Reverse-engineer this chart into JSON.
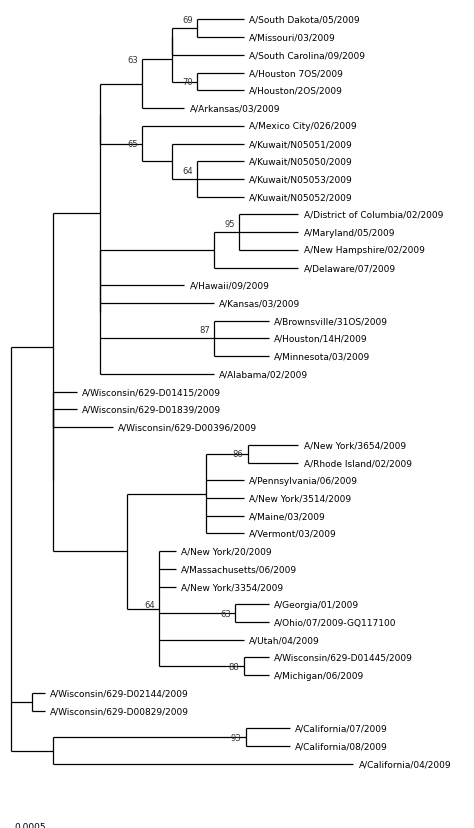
{
  "figsize": [
    4.74,
    8.29
  ],
  "dpi": 100,
  "font_size": 6.5,
  "bootstrap_font_size": 6,
  "lw": 0.9,
  "scalebar_label": "0.0005",
  "taxa": [
    {
      "label": "A/South Dakota/05/2009",
      "y": 0,
      "xtip": 0.55
    },
    {
      "label": "A/Missouri/03/2009",
      "y": 1,
      "xtip": 0.55
    },
    {
      "label": "A/South Carolina/09/2009",
      "y": 2,
      "xtip": 0.55
    },
    {
      "label": "A/Houston 7OS/2009",
      "y": 3,
      "xtip": 0.55
    },
    {
      "label": "A/Houston/2OS/2009",
      "y": 4,
      "xtip": 0.55
    },
    {
      "label": "A/Arkansas/03/2009",
      "y": 5,
      "xtip": 0.41
    },
    {
      "label": "A/Mexico City/026/2009",
      "y": 6,
      "xtip": 0.55
    },
    {
      "label": "A/Kuwait/N05051/2009",
      "y": 7,
      "xtip": 0.55
    },
    {
      "label": "A/Kuwait/N05050/2009",
      "y": 8,
      "xtip": 0.55
    },
    {
      "label": "A/Kuwait/N05053/2009",
      "y": 9,
      "xtip": 0.55
    },
    {
      "label": "A/Kuwait/N05052/2009",
      "y": 10,
      "xtip": 0.55
    },
    {
      "label": "A/District of Columbia/02/2009",
      "y": 11,
      "xtip": 0.68
    },
    {
      "label": "A/Maryland/05/2009",
      "y": 12,
      "xtip": 0.68
    },
    {
      "label": "A/New Hampshire/02/2009",
      "y": 13,
      "xtip": 0.68
    },
    {
      "label": "A/Delaware/07/2009",
      "y": 14,
      "xtip": 0.68
    },
    {
      "label": "A/Hawaii/09/2009",
      "y": 15,
      "xtip": 0.41
    },
    {
      "label": "A/Kansas/03/2009",
      "y": 16,
      "xtip": 0.48
    },
    {
      "label": "A/Brownsville/31OS/2009",
      "y": 17,
      "xtip": 0.61
    },
    {
      "label": "A/Houston/14H/2009",
      "y": 18,
      "xtip": 0.61
    },
    {
      "label": "A/Minnesota/03/2009",
      "y": 19,
      "xtip": 0.61
    },
    {
      "label": "A/Alabama/02/2009",
      "y": 20,
      "xtip": 0.48
    },
    {
      "label": "A/Wisconsin/629-D01415/2009",
      "y": 21,
      "xtip": 0.155
    },
    {
      "label": "A/Wisconsin/629-D01839/2009",
      "y": 22,
      "xtip": 0.155
    },
    {
      "label": "A/Wisconsin/629-D00396/2009",
      "y": 23,
      "xtip": 0.24
    },
    {
      "label": "A/New York/3654/2009",
      "y": 24,
      "xtip": 0.68
    },
    {
      "label": "A/Rhode Island/02/2009",
      "y": 25,
      "xtip": 0.68
    },
    {
      "label": "A/Pennsylvania/06/2009",
      "y": 26,
      "xtip": 0.55
    },
    {
      "label": "A/New York/3514/2009",
      "y": 27,
      "xtip": 0.55
    },
    {
      "label": "A/Maine/03/2009",
      "y": 28,
      "xtip": 0.55
    },
    {
      "label": "A/Vermont/03/2009",
      "y": 29,
      "xtip": 0.55
    },
    {
      "label": "A/New York/20/2009",
      "y": 30,
      "xtip": 0.39
    },
    {
      "label": "A/Massachusetts/06/2009",
      "y": 31,
      "xtip": 0.39
    },
    {
      "label": "A/New York/3354/2009",
      "y": 32,
      "xtip": 0.39
    },
    {
      "label": "A/Georgia/01/2009",
      "y": 33,
      "xtip": 0.61
    },
    {
      "label": "A/Ohio/07/2009-GQ117100",
      "y": 34,
      "xtip": 0.61
    },
    {
      "label": "A/Utah/04/2009",
      "y": 35,
      "xtip": 0.55
    },
    {
      "label": "A/Wisconsin/629-D01445/2009",
      "y": 36,
      "xtip": 0.61
    },
    {
      "label": "A/Michigan/06/2009",
      "y": 37,
      "xtip": 0.61
    },
    {
      "label": "A/Wisconsin/629-D02144/2009",
      "y": 38,
      "xtip": 0.08
    },
    {
      "label": "A/Wisconsin/629-D00829/2009",
      "y": 39,
      "xtip": 0.08
    },
    {
      "label": "A/California/07/2009",
      "y": 40,
      "xtip": 0.66
    },
    {
      "label": "A/California/08/2009",
      "y": 41,
      "xtip": 0.66
    },
    {
      "label": "A/California/04/2009",
      "y": 42,
      "xtip": 0.81
    }
  ]
}
